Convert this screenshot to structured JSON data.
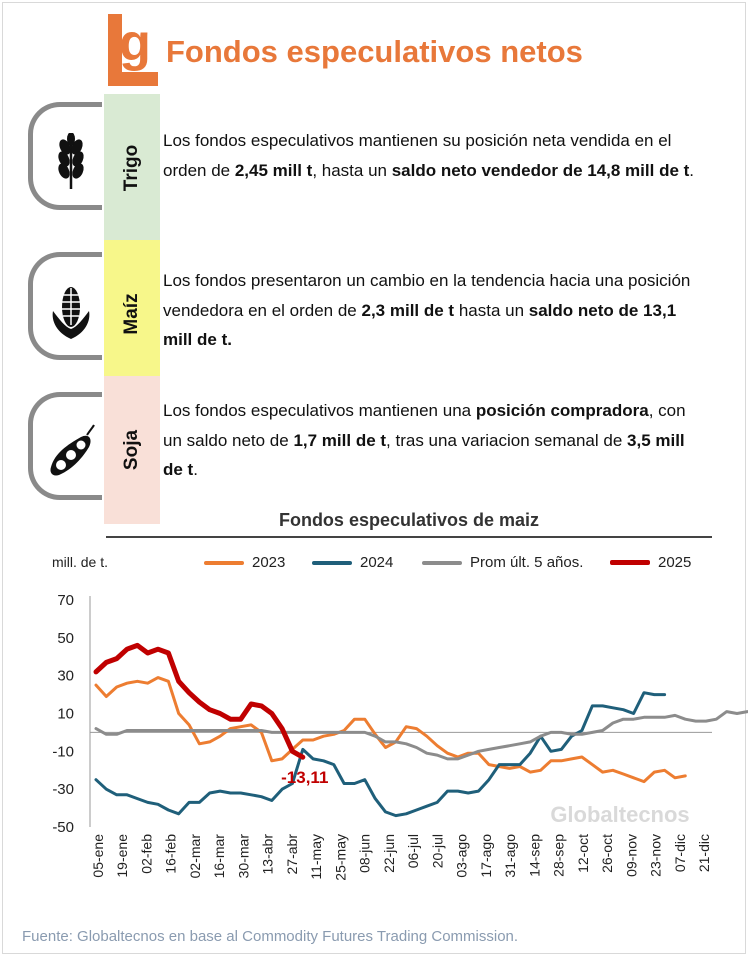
{
  "header": {
    "logo_letter": "g",
    "title": "Fondos especulativos netos"
  },
  "crops": [
    {
      "name": "Trigo",
      "color": "#d9ead3",
      "icon": "wheat-icon",
      "parts": [
        {
          "t": "Los fondos especulativos mantienen su posición neta vendida en el orden de ",
          "b": false
        },
        {
          "t": "2,45 mill t",
          "b": true
        },
        {
          "t": ", hasta un ",
          "b": false
        },
        {
          "t": "saldo neto vendedor de 14,8 mill de t",
          "b": true
        },
        {
          "t": ".",
          "b": false
        }
      ]
    },
    {
      "name": "Maíz",
      "color": "#f7f78a",
      "icon": "corn-icon",
      "parts": [
        {
          "t": "Los fondos presentaron un cambio en la tendencia hacia una posición vendedora en el orden de ",
          "b": false
        },
        {
          "t": "2,3 mill de t",
          "b": true
        },
        {
          "t": " hasta un ",
          "b": false
        },
        {
          "t": "saldo neto de 13,1 mill de t.",
          "b": true
        }
      ]
    },
    {
      "name": "Soja",
      "color": "#f9e0d8",
      "icon": "soybean-icon",
      "parts": [
        {
          "t": "Los fondos especulativos mantienen una ",
          "b": false
        },
        {
          "t": "posición compradora",
          "b": true
        },
        {
          "t": ", con un saldo neto de ",
          "b": false
        },
        {
          "t": "1,7 mill de t",
          "b": true
        },
        {
          "t": ", tras una variacion semanal de ",
          "b": false
        },
        {
          "t": "3,5 mill de t",
          "b": true
        },
        {
          "t": ".",
          "b": false
        }
      ]
    }
  ],
  "chart_data": {
    "type": "line",
    "title": "Fondos especulativos de maiz",
    "ylabel": "mill. de t.",
    "ylim": [
      -50,
      70
    ],
    "yticks": [
      70,
      50,
      30,
      10,
      -10,
      -30,
      -50
    ],
    "grid": false,
    "legend_position": "top",
    "x_labels": [
      "05-ene",
      "19-ene",
      "02-feb",
      "16-feb",
      "02-mar",
      "16-mar",
      "30-mar",
      "13-abr",
      "27-abr",
      "11-may",
      "25-may",
      "08-jun",
      "22-jun",
      "06-jul",
      "20-jul",
      "03-ago",
      "17-ago",
      "31-ago",
      "14-sep",
      "28-sep",
      "12-oct",
      "26-oct",
      "09-nov",
      "23-nov",
      "07-dic",
      "21-dic"
    ],
    "annotation": "-13,11",
    "watermark": "Globaltecnos",
    "series": [
      {
        "name": "2023",
        "color": "#ed7d31",
        "width": 3,
        "values": [
          25,
          19,
          24,
          26,
          27,
          26,
          29,
          27,
          10,
          4,
          -6,
          -5,
          -2,
          2,
          3,
          4,
          0,
          -15,
          -14,
          -9,
          -4,
          -4,
          -2,
          -1,
          1,
          7,
          7,
          -1,
          -8,
          -5,
          3,
          2,
          -2,
          -7,
          -11,
          -13,
          -11,
          -11,
          -17,
          -18,
          -19,
          -18,
          -21,
          -20,
          -15,
          -15,
          -14,
          -13,
          -17,
          -21,
          -20,
          -22,
          -24,
          -26,
          -21,
          -20,
          -24,
          -23
        ]
      },
      {
        "name": "2024",
        "color": "#1f5f7a",
        "width": 3,
        "values": [
          -25,
          -30,
          -33,
          -33,
          -35,
          -37,
          -38,
          -41,
          -43,
          -37,
          -37,
          -32,
          -31,
          -32,
          -32,
          -33,
          -34,
          -36,
          -30,
          -27,
          -9,
          -14,
          -15,
          -17,
          -27,
          -27,
          -25,
          -35,
          -42,
          -44,
          -43,
          -41,
          -39,
          -37,
          -31,
          -31,
          -32,
          -31,
          -25,
          -17,
          -17,
          -17,
          -11,
          -2,
          -10,
          -9,
          -2,
          1,
          14,
          14,
          13,
          12,
          10,
          21,
          20,
          20
        ]
      },
      {
        "name": "Prom últ. 5 años.",
        "color": "#8c8c8c",
        "width": 3,
        "values": [
          2,
          -1,
          -1,
          1,
          1,
          1,
          1,
          1,
          1,
          1,
          1,
          1,
          1,
          1,
          1,
          1,
          1,
          0,
          0,
          0,
          0,
          0,
          0,
          0,
          0,
          0,
          0,
          -2,
          -5,
          -5,
          -6,
          -8,
          -11,
          -12,
          -14,
          -14,
          -12,
          -10,
          -9,
          -8,
          -7,
          -6,
          -5,
          -2,
          0,
          0,
          -1,
          -1,
          0,
          1,
          5,
          7,
          7,
          8,
          8,
          8,
          9,
          7,
          6,
          6,
          7,
          11,
          10,
          11,
          11
        ]
      },
      {
        "name": "2025",
        "color": "#c00000",
        "width": 5,
        "values": [
          32,
          37,
          39,
          44,
          46,
          42,
          44,
          42,
          27,
          21,
          16,
          12,
          10,
          7,
          7,
          15,
          14,
          10,
          2,
          -10,
          -13.11
        ]
      }
    ]
  },
  "footer": {
    "source": "Fuente: Globaltecnos en base al Commodity Futures Trading Commission."
  }
}
